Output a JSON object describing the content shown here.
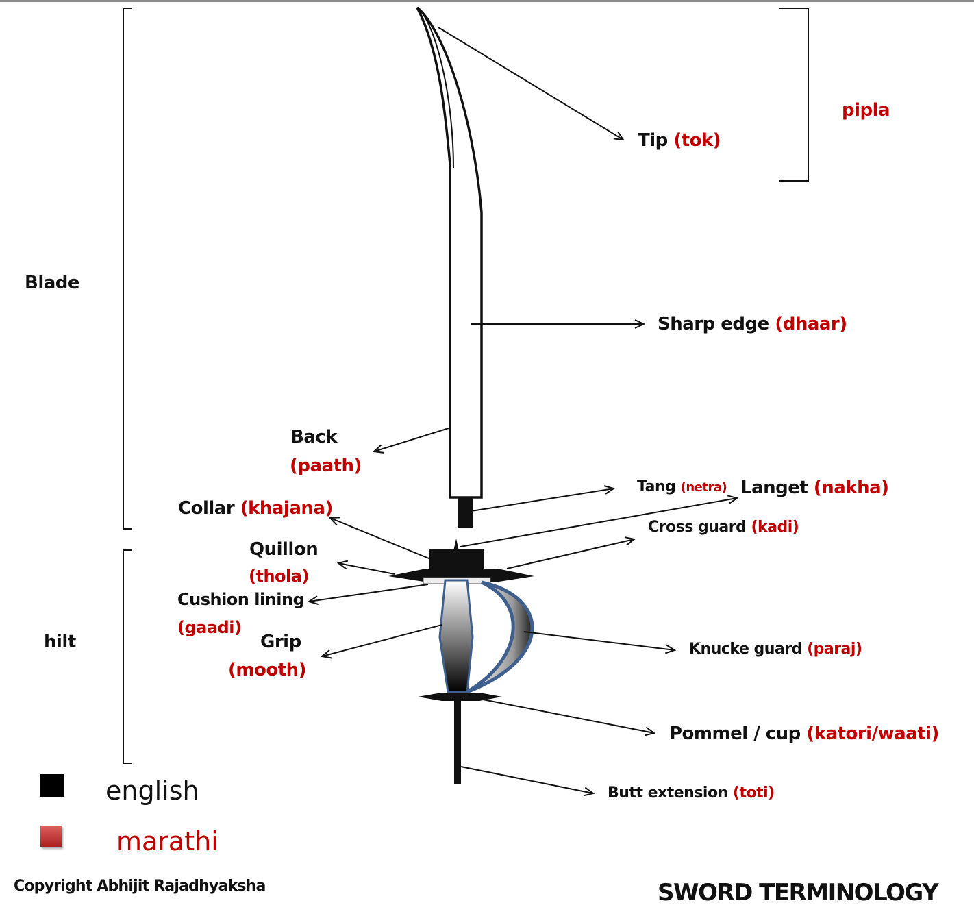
{
  "labels": {
    "blade": "Blade",
    "hilt": "hilt",
    "pipla": "pipla",
    "tip_en": "Tip",
    "tip_mr": "(tok)",
    "sharp_edge_en": "Sharp edge",
    "sharp_edge_mr": "(dhaar)",
    "back_en": "Back",
    "back_mr": "(paath)",
    "tang_en": "Tang",
    "tang_mr": "(netra)",
    "langet_en": "Langet",
    "langet_mr": "(nakha)",
    "collar_en": "Collar",
    "collar_mr": "(khajana)",
    "cross_guard_en": "Cross guard",
    "cross_guard_mr": "(kadi)",
    "quillon_en": "Quillon",
    "quillon_mr": "(thola)",
    "cushion_en": "Cushion lining",
    "cushion_mr": "(gaadi)",
    "grip_en": "Grip",
    "grip_mr": "(mooth)",
    "knuckle_en": "Knucke guard",
    "knuckle_mr": "(paraj)",
    "pommel_en": "Pommel / cup",
    "pommel_mr": "(katori/waati)",
    "butt_en": "Butt extension",
    "butt_mr": "(toti)"
  },
  "legend": {
    "english": "english",
    "marathi": "marathi"
  },
  "footer": {
    "copyright": "Copyright Abhijit Rajadhyaksha",
    "title": "SWORD TERMINOLOGY"
  },
  "colors": {
    "english_text": "#111111",
    "marathi_text": "#c00000",
    "english_swatch": "#000000",
    "marathi_swatch": "#c0392b",
    "knuckle_guard_outline": "#3f5f8f"
  }
}
